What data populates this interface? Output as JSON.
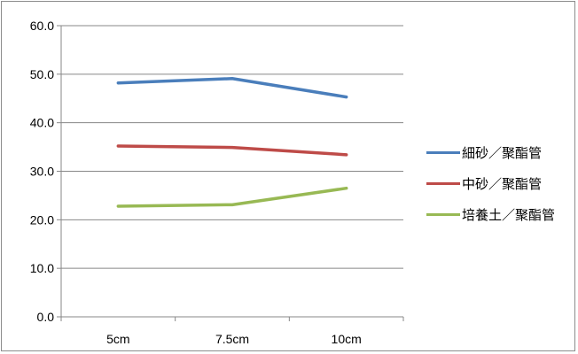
{
  "chart_data": {
    "type": "line",
    "title": "",
    "xlabel": "",
    "ylabel": "",
    "categories": [
      "5cm",
      "7.5cm",
      "10cm"
    ],
    "ylim": [
      0,
      60
    ],
    "ytick_labels": [
      "0.0",
      "10.0",
      "20.0",
      "30.0",
      "40.0",
      "50.0",
      "60.0"
    ],
    "grid": true,
    "legend_position": "right",
    "series": [
      {
        "name": "細砂／聚酯管",
        "color": "#4a7ebb",
        "values": [
          48.2,
          49.1,
          45.3
        ]
      },
      {
        "name": "中砂／聚酯管",
        "color": "#be4b48",
        "values": [
          35.2,
          34.9,
          33.4
        ]
      },
      {
        "name": "培養土／聚酯管",
        "color": "#98b954",
        "values": [
          22.8,
          23.1,
          26.5
        ]
      }
    ]
  }
}
